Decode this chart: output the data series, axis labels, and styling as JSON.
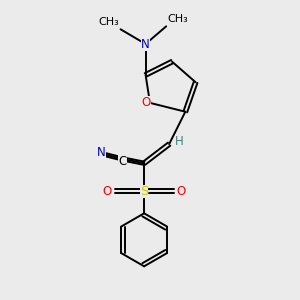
{
  "bg_color": "#ebebeb",
  "atom_colors": {
    "C": "#000000",
    "N": "#0000cc",
    "O": "#ff0000",
    "S": "#cccc00",
    "H": "#408080"
  },
  "lw": 1.4,
  "fs": 8.5
}
